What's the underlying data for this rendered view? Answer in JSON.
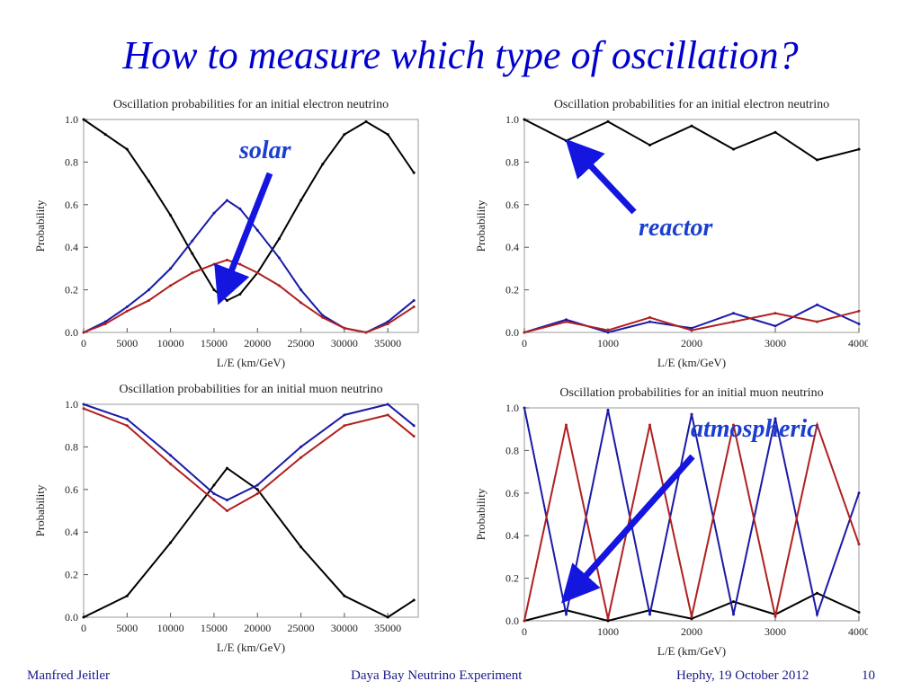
{
  "slide": {
    "title": "How to measure which type of oscillation?",
    "annotations": {
      "solar": "solar",
      "reactor": "reactor",
      "atmospheric": "atmospheric"
    },
    "footer": {
      "left": "Manfred Jeitler",
      "center": "Daya Bay Neutrino Experiment",
      "right": "Hephy, 19 October 2012",
      "page": "10"
    },
    "colors": {
      "title": "#0000cc",
      "annotation": "#1a3fd0",
      "arrow": "#1515e0"
    }
  },
  "chart_data": [
    {
      "type": "line",
      "title": "Oscillation probabilities for an initial electron neutrino",
      "xlabel": "L/E (km/GeV)",
      "ylabel": "Probability",
      "xlim": [
        0,
        38500
      ],
      "ylim": [
        0,
        1
      ],
      "xticks": [
        0,
        5000,
        10000,
        15000,
        20000,
        25000,
        30000,
        35000
      ],
      "xtick_labels": [
        "0",
        "5000",
        "10000",
        "15000",
        "20000",
        "25000",
        "30000",
        "35000"
      ],
      "yticks": [
        0,
        0.2,
        0.4,
        0.6,
        0.8,
        1.0
      ],
      "ytick_labels": [
        "0.0",
        "0.2",
        "0.4",
        "0.6",
        "0.8",
        "1.0"
      ],
      "series": [
        {
          "color": "#000000",
          "x": [
            0,
            2500,
            5000,
            7500,
            10000,
            12500,
            15000,
            16500,
            18000,
            20000,
            22500,
            25000,
            27500,
            30000,
            32500,
            35000,
            38000
          ],
          "y": [
            1.0,
            0.93,
            0.86,
            0.71,
            0.55,
            0.37,
            0.2,
            0.15,
            0.18,
            0.28,
            0.44,
            0.62,
            0.79,
            0.93,
            0.99,
            0.93,
            0.75
          ]
        },
        {
          "color": "#1a1aa8",
          "x": [
            0,
            2500,
            5000,
            7500,
            10000,
            12500,
            15000,
            16500,
            18000,
            20000,
            22500,
            25000,
            27500,
            30000,
            32500,
            35000,
            38000
          ],
          "y": [
            0.0,
            0.05,
            0.12,
            0.2,
            0.3,
            0.43,
            0.56,
            0.62,
            0.58,
            0.48,
            0.35,
            0.2,
            0.08,
            0.02,
            0.0,
            0.05,
            0.15
          ]
        },
        {
          "color": "#b02020",
          "x": [
            0,
            2500,
            5000,
            7500,
            10000,
            12500,
            15000,
            16500,
            18000,
            20000,
            22500,
            25000,
            27500,
            30000,
            32500,
            35000,
            38000
          ],
          "y": [
            0.0,
            0.04,
            0.1,
            0.15,
            0.22,
            0.28,
            0.32,
            0.34,
            0.32,
            0.28,
            0.22,
            0.14,
            0.07,
            0.02,
            0.0,
            0.04,
            0.12
          ]
        }
      ]
    },
    {
      "type": "line",
      "title": "Oscillation probabilities for an initial electron neutrino",
      "xlabel": "L/E (km/GeV)",
      "ylabel": "Probability",
      "xlim": [
        0,
        4000
      ],
      "ylim": [
        0,
        1
      ],
      "xticks": [
        0,
        1000,
        2000,
        3000,
        4000
      ],
      "xtick_labels": [
        "0",
        "1000",
        "2000",
        "3000",
        "4000"
      ],
      "yticks": [
        0,
        0.2,
        0.4,
        0.6,
        0.8,
        1.0
      ],
      "ytick_labels": [
        "0.0",
        "0.2",
        "0.4",
        "0.6",
        "0.8",
        "1.0"
      ],
      "series": [
        {
          "color": "#000000",
          "x": [
            0,
            500,
            1000,
            1500,
            2000,
            2500,
            3000,
            3500,
            4000
          ],
          "y": [
            1.0,
            0.9,
            0.99,
            0.88,
            0.97,
            0.86,
            0.94,
            0.81,
            0.86
          ]
        },
        {
          "color": "#1a1aa8",
          "x": [
            0,
            500,
            1000,
            1500,
            2000,
            2500,
            3000,
            3500,
            4000
          ],
          "y": [
            0.0,
            0.06,
            0.0,
            0.05,
            0.02,
            0.09,
            0.03,
            0.13,
            0.04
          ]
        },
        {
          "color": "#b02020",
          "x": [
            0,
            500,
            1000,
            1500,
            2000,
            2500,
            3000,
            3500,
            4000
          ],
          "y": [
            0.0,
            0.05,
            0.01,
            0.07,
            0.01,
            0.05,
            0.09,
            0.05,
            0.1
          ]
        }
      ]
    },
    {
      "type": "line",
      "title": "Oscillation probabilities for an initial muon neutrino",
      "xlabel": "L/E (km/GeV)",
      "ylabel": "Probability",
      "xlim": [
        0,
        38500
      ],
      "ylim": [
        0,
        1
      ],
      "xticks": [
        0,
        5000,
        10000,
        15000,
        20000,
        25000,
        30000,
        35000
      ],
      "xtick_labels": [
        "0",
        "5000",
        "10000",
        "15000",
        "20000",
        "25000",
        "30000",
        "35000"
      ],
      "yticks": [
        0,
        0.2,
        0.4,
        0.6,
        0.8,
        1.0
      ],
      "ytick_labels": [
        "0.0",
        "0.2",
        "0.4",
        "0.6",
        "0.8",
        "1.0"
      ],
      "series": [
        {
          "color": "#000000",
          "x": [
            0,
            5000,
            10000,
            15000,
            16500,
            20000,
            25000,
            30000,
            35000,
            38000
          ],
          "y": [
            0.0,
            0.1,
            0.35,
            0.62,
            0.7,
            0.6,
            0.33,
            0.1,
            0.0,
            0.08
          ]
        },
        {
          "color": "#1a1aa8",
          "x": [
            0,
            5000,
            10000,
            15000,
            16500,
            20000,
            25000,
            30000,
            35000,
            38000
          ],
          "y": [
            1.0,
            0.93,
            0.76,
            0.58,
            0.55,
            0.62,
            0.8,
            0.95,
            1.0,
            0.9
          ]
        },
        {
          "color": "#b02020",
          "x": [
            0,
            5000,
            10000,
            15000,
            16500,
            20000,
            25000,
            30000,
            35000,
            38000
          ],
          "y": [
            0.98,
            0.9,
            0.72,
            0.55,
            0.5,
            0.58,
            0.75,
            0.9,
            0.95,
            0.85
          ]
        }
      ]
    },
    {
      "type": "line",
      "title": "Oscillation probabilities for an initial muon neutrino",
      "xlabel": "L/E (km/GeV)",
      "ylabel": "Probability",
      "xlim": [
        0,
        4000
      ],
      "ylim": [
        0,
        1
      ],
      "xticks": [
        0,
        1000,
        2000,
        3000,
        4000
      ],
      "xtick_labels": [
        "0",
        "1000",
        "2000",
        "3000",
        "4000"
      ],
      "yticks": [
        0,
        0.2,
        0.4,
        0.6,
        0.8,
        1.0
      ],
      "ytick_labels": [
        "0.0",
        "0.2",
        "0.4",
        "0.6",
        "0.8",
        "1.0"
      ],
      "series": [
        {
          "color": "#000000",
          "x": [
            0,
            500,
            1000,
            1500,
            2000,
            2500,
            3000,
            3500,
            4000
          ],
          "y": [
            0.0,
            0.05,
            0.0,
            0.05,
            0.01,
            0.09,
            0.03,
            0.13,
            0.04
          ]
        },
        {
          "color": "#1a1aa8",
          "x": [
            0,
            500,
            1000,
            1500,
            2000,
            2500,
            3000,
            3500,
            4000
          ],
          "y": [
            1.0,
            0.03,
            0.99,
            0.03,
            0.97,
            0.03,
            0.95,
            0.03,
            0.6
          ]
        },
        {
          "color": "#b02020",
          "x": [
            0,
            500,
            1000,
            1500,
            2000,
            2500,
            3000,
            3500,
            4000
          ],
          "y": [
            0.0,
            0.92,
            0.01,
            0.92,
            0.02,
            0.92,
            0.02,
            0.92,
            0.36
          ]
        }
      ]
    }
  ]
}
